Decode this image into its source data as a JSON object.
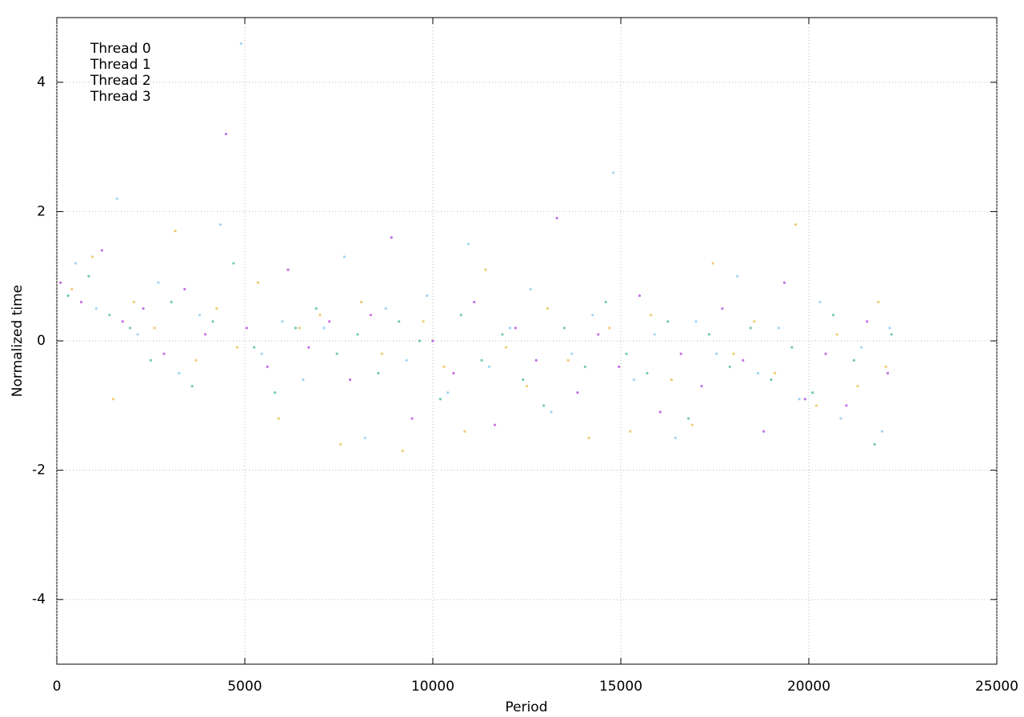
{
  "chart_data": {
    "type": "scatter",
    "xlabel": "Period",
    "ylabel": "Normalized time",
    "xlim": [
      0,
      25000
    ],
    "xticks": [
      0,
      5000,
      10000,
      15000,
      20000,
      25000
    ],
    "ylim": [
      -5,
      5
    ],
    "yticks": [
      -4,
      -2,
      0,
      2,
      4
    ],
    "grid": true,
    "legend": "top-left",
    "series": [
      {
        "name": "Thread 0",
        "color": "#9400d3",
        "x": [
          100,
          650,
          1200,
          1750,
          2300,
          2850,
          3400,
          3950,
          4500,
          5050,
          5600,
          6150,
          6700,
          7250,
          7800,
          8350,
          8900,
          9450,
          10000,
          10550,
          11100,
          11650,
          12200,
          12750,
          13300,
          13850,
          14400,
          14950,
          15500,
          16050,
          16600,
          17150,
          17700,
          18250,
          18800,
          19350,
          19900,
          20450,
          21000,
          21550,
          22100
        ],
        "values": [
          0.9,
          0.6,
          1.4,
          0.3,
          0.5,
          -0.2,
          0.8,
          0.1,
          3.2,
          0.2,
          -0.4,
          1.1,
          -0.1,
          0.3,
          -0.6,
          0.4,
          1.6,
          -1.2,
          0.0,
          -0.5,
          0.6,
          -1.3,
          0.2,
          -0.3,
          1.9,
          -0.8,
          0.1,
          -0.4,
          0.7,
          -1.1,
          -0.2,
          -0.7,
          0.5,
          -0.3,
          -1.4,
          0.9,
          -0.9,
          -0.2,
          -1.0,
          0.3,
          -0.5
        ]
      },
      {
        "name": "Thread 1",
        "color": "#009e73",
        "x": [
          300,
          850,
          1400,
          1950,
          2500,
          3050,
          3600,
          4150,
          4700,
          5250,
          5800,
          6350,
          6900,
          7450,
          8000,
          8550,
          9100,
          9650,
          10200,
          10750,
          11300,
          11850,
          12400,
          12950,
          13500,
          14050,
          14600,
          15150,
          15700,
          16250,
          16800,
          17350,
          17900,
          18450,
          19000,
          19550,
          20100,
          20650,
          21200,
          21750,
          22200
        ],
        "values": [
          0.7,
          1.0,
          0.4,
          0.2,
          -0.3,
          0.6,
          -0.7,
          0.3,
          1.2,
          -0.1,
          -0.8,
          0.2,
          0.5,
          -0.2,
          0.1,
          -0.5,
          0.3,
          0.0,
          -0.9,
          0.4,
          -0.3,
          0.1,
          -0.6,
          -1.0,
          0.2,
          -0.4,
          0.6,
          -0.2,
          -0.5,
          0.3,
          -1.2,
          0.1,
          -0.4,
          0.2,
          -0.6,
          -0.1,
          -0.8,
          0.4,
          -0.3,
          -1.6,
          0.1
        ]
      },
      {
        "name": "Thread 2",
        "color": "#56b4e9",
        "x": [
          500,
          1050,
          1600,
          2150,
          2700,
          3250,
          3800,
          4350,
          4900,
          5450,
          6000,
          6550,
          7100,
          7650,
          8200,
          8750,
          9300,
          9850,
          10400,
          10950,
          11500,
          12050,
          12600,
          13150,
          13700,
          14250,
          14800,
          15350,
          15900,
          16450,
          17000,
          17550,
          18100,
          18650,
          19200,
          19750,
          20300,
          20850,
          21400,
          21950,
          22150
        ],
        "values": [
          1.2,
          0.5,
          2.2,
          0.1,
          0.9,
          -0.5,
          0.4,
          1.8,
          4.6,
          -0.2,
          0.3,
          -0.6,
          0.2,
          1.3,
          -1.5,
          0.5,
          -0.3,
          0.7,
          -0.8,
          1.5,
          -0.4,
          0.2,
          0.8,
          -1.1,
          -0.2,
          0.4,
          2.6,
          -0.6,
          0.1,
          -1.5,
          0.3,
          -0.2,
          1.0,
          -0.5,
          0.2,
          -0.9,
          0.6,
          -1.2,
          -0.1,
          -1.4,
          0.2
        ]
      },
      {
        "name": "Thread 3",
        "color": "#e69f00",
        "x": [
          400,
          950,
          1500,
          2050,
          2600,
          3150,
          3700,
          4250,
          4800,
          5350,
          5900,
          6450,
          7000,
          7550,
          8100,
          8650,
          9200,
          9750,
          10300,
          10850,
          11400,
          11950,
          12500,
          13050,
          13600,
          14150,
          14700,
          15250,
          15800,
          16350,
          16900,
          17450,
          18000,
          18550,
          19100,
          19650,
          20200,
          20750,
          21300,
          21850,
          22050
        ],
        "values": [
          0.8,
          1.3,
          -0.9,
          0.6,
          0.2,
          1.7,
          -0.3,
          0.5,
          -0.1,
          0.9,
          -1.2,
          0.2,
          0.4,
          -1.6,
          0.6,
          -0.2,
          -1.7,
          0.3,
          -0.4,
          -1.4,
          1.1,
          -0.1,
          -0.7,
          0.5,
          -0.3,
          -1.5,
          0.2,
          -1.4,
          0.4,
          -0.6,
          -1.3,
          1.2,
          -0.2,
          0.3,
          -0.5,
          1.8,
          -1.0,
          0.1,
          -0.7,
          0.6,
          -0.4
        ]
      }
    ]
  }
}
